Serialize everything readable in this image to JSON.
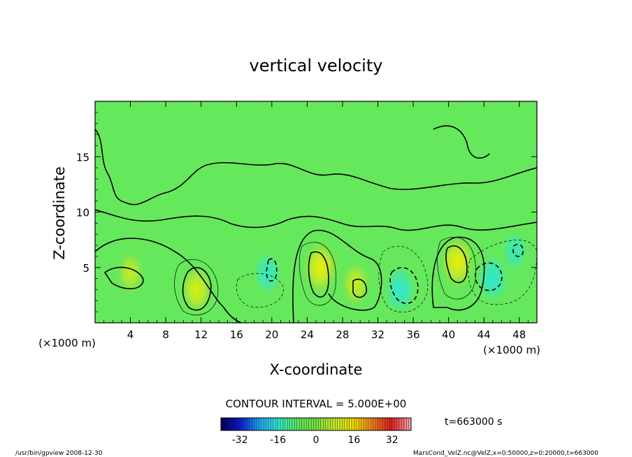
{
  "chart_data": {
    "type": "heatmap",
    "title": "vertical velocity",
    "xlabel": "X-coordinate",
    "ylabel": "Z-coordinate",
    "x_unit_left": "(×1000 m)",
    "x_unit_right": "(×1000 m)",
    "x_ticks": [
      4,
      8,
      12,
      16,
      20,
      24,
      28,
      32,
      36,
      40,
      44,
      48
    ],
    "y_ticks": [
      5,
      10,
      15
    ],
    "xlim": [
      0,
      50
    ],
    "ylim": [
      0,
      20
    ],
    "contour_interval_text": "CONTOUR INTERVAL = 5.000E+00",
    "time_label": "t=663000 s",
    "colorbar_ticks": [
      -32,
      -16,
      0,
      16,
      32
    ],
    "colorbar_range": [
      -40,
      40
    ],
    "cells": [
      {
        "x": 4,
        "z": 4.5,
        "value": 8
      },
      {
        "x": 11.5,
        "z": 3,
        "value": 14
      },
      {
        "x": 19.5,
        "z": 4.5,
        "value": -10
      },
      {
        "x": 25.5,
        "z": 5,
        "value": 18
      },
      {
        "x": 29.5,
        "z": 3.5,
        "value": 10
      },
      {
        "x": 34.5,
        "z": 3,
        "value": -14
      },
      {
        "x": 41,
        "z": 5.5,
        "value": 18
      },
      {
        "x": 45,
        "z": 4,
        "value": -14
      },
      {
        "x": 47.5,
        "z": 6.5,
        "value": -8
      }
    ],
    "colors": [
      "#000060",
      "#1020d8",
      "#20a8f0",
      "#30e8d0",
      "#60e860",
      "#78e040",
      "#c8e830",
      "#f0e000",
      "#f08020",
      "#e02020",
      "#f0a0a0"
    ]
  },
  "footer": {
    "left": "/usr/bin/gpview   2008-12-30",
    "right": "MarsCond_VelZ.nc@VelZ,x=0:50000,z=0:20000,t=663000"
  }
}
